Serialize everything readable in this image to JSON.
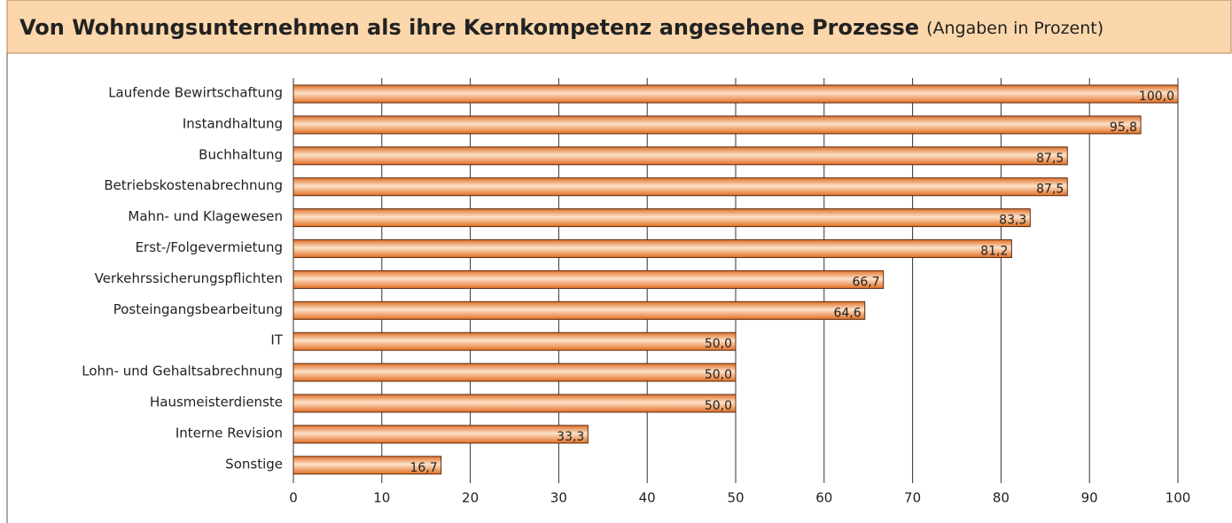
{
  "chart_data": {
    "type": "bar",
    "orientation": "horizontal",
    "title": "Von Wohnungsunternehmen als ihre Kernkompetenz angesehene Prozesse",
    "subtitle": "(Angaben in Prozent)",
    "categories": [
      "Laufende Bewirtschaftung",
      "Instandhaltung",
      "Buchhaltung",
      "Betriebskostenabrechnung",
      "Mahn- und Klagewesen",
      "Erst-/Folgevermietung",
      "Verkehrssicherungspflichten",
      "Posteingangsbearbeitung",
      "IT",
      "Lohn- und Gehaltsabrechnung",
      "Hausmeisterdienste",
      "Interne Revision",
      "Sonstige"
    ],
    "values": [
      100.0,
      95.8,
      87.5,
      87.5,
      83.3,
      81.2,
      66.7,
      64.6,
      50.0,
      50.0,
      50.0,
      33.3,
      16.7
    ],
    "value_labels": [
      "100,0",
      "95,8",
      "87,5",
      "87,5",
      "83,3",
      "81,2",
      "66,7",
      "64,6",
      "50,0",
      "50,0",
      "50,0",
      "33,3",
      "16,7"
    ],
    "color": "#f08a3c",
    "xlim": [
      0,
      100
    ],
    "xticks": [
      0,
      10,
      20,
      30,
      40,
      50,
      60,
      70,
      80,
      90,
      100
    ],
    "grid": true
  }
}
